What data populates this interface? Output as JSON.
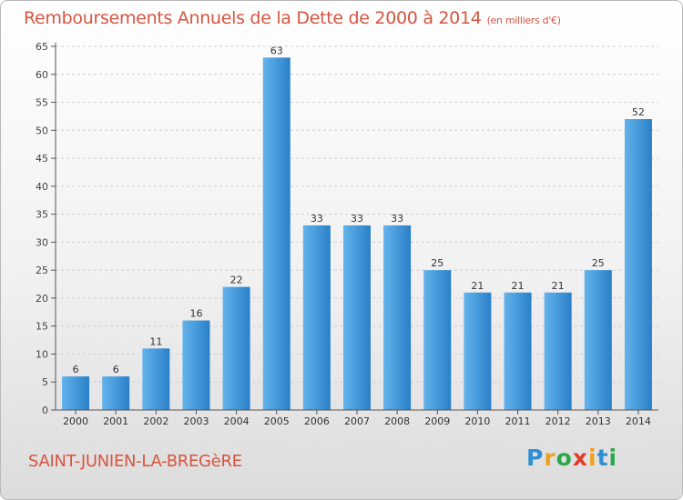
{
  "title": "Remboursements Annuels de la Dette de 2000 à 2014",
  "unit_note": "(en milliers d'€)",
  "commune": "SAINT-JUNIEN-LA-BREGèRE",
  "brand": "Proxiti",
  "colors": {
    "bar_light": "#63b3ec",
    "bar_dark": "#2a80c8",
    "title": "#d5553f",
    "grid": "#d0d0d0"
  },
  "chart_data": {
    "type": "bar",
    "categories": [
      "2000",
      "2001",
      "2002",
      "2003",
      "2004",
      "2005",
      "2006",
      "2007",
      "2008",
      "2009",
      "2010",
      "2011",
      "2012",
      "2013",
      "2014"
    ],
    "values": [
      6,
      6,
      11,
      16,
      22,
      63,
      33,
      33,
      33,
      25,
      21,
      21,
      21,
      25,
      52
    ],
    "ylim": [
      0,
      65
    ],
    "yticks": [
      0,
      5,
      10,
      15,
      20,
      25,
      30,
      35,
      40,
      45,
      50,
      55,
      60,
      65
    ],
    "grid": true,
    "data_labels": true
  }
}
